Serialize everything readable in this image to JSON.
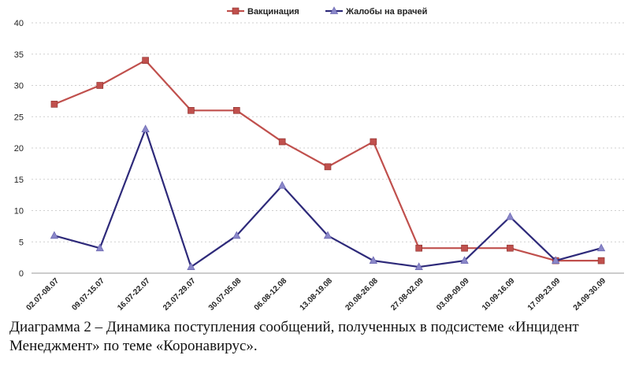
{
  "chart_data": {
    "type": "line",
    "categories": [
      "02.07-08.07",
      "09.07-15.07",
      "16.07-22.07",
      "23.07-29.07",
      "30.07-05.08",
      "06.08-12.08",
      "13.08-19.08",
      "20.08-26.08",
      "27.08-02.09",
      "03.09-09.09",
      "10.09-16.09",
      "17.09-23.09",
      "24.09-30.09"
    ],
    "series": [
      {
        "name": "Вакцинация",
        "color": "#c0504d",
        "marker": "square",
        "values": [
          27,
          30,
          34,
          26,
          26,
          21,
          17,
          21,
          4,
          4,
          4,
          2,
          2
        ]
      },
      {
        "name": "Жалобы на врачей",
        "color": "#2e2a7a",
        "marker": "triangle",
        "values": [
          6,
          4,
          23,
          1,
          6,
          14,
          6,
          2,
          1,
          2,
          9,
          2,
          4
        ]
      }
    ],
    "yticks": [
      0,
      5,
      10,
      15,
      20,
      25,
      30,
      35,
      40
    ],
    "ylim": [
      0,
      40
    ],
    "grid": true,
    "legend_position": "top-center",
    "title": "",
    "xlabel": "",
    "ylabel": ""
  },
  "caption": "Диаграмма 2 – Динамика поступления сообщений, полученных в подсистеме «Инцидент Менеджмент» по теме «Коронавирус»."
}
